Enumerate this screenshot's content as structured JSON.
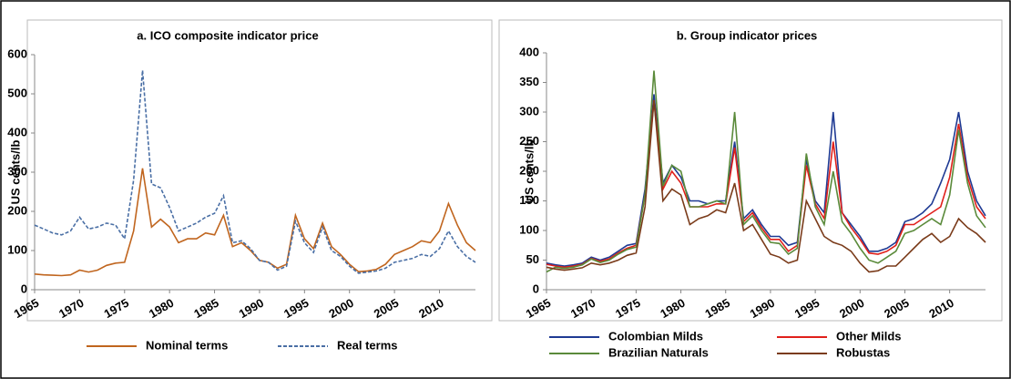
{
  "chart_data": [
    {
      "type": "line",
      "title": "a. ICO composite indicator price",
      "y_label": "US cents/lb",
      "x": [
        1965,
        1966,
        1967,
        1968,
        1969,
        1970,
        1971,
        1972,
        1973,
        1974,
        1975,
        1976,
        1977,
        1978,
        1979,
        1980,
        1981,
        1982,
        1983,
        1984,
        1985,
        1986,
        1987,
        1988,
        1989,
        1990,
        1991,
        1992,
        1993,
        1994,
        1995,
        1996,
        1997,
        1998,
        1999,
        2000,
        2001,
        2002,
        2003,
        2004,
        2005,
        2006,
        2007,
        2008,
        2009,
        2010,
        2011,
        2012,
        2013,
        2014
      ],
      "xlim": [
        1965,
        2014
      ],
      "xticks": [
        1965,
        1970,
        1975,
        1980,
        1985,
        1990,
        1995,
        2000,
        2005,
        2010
      ],
      "ylim": [
        0,
        600
      ],
      "yticks": [
        0,
        100,
        200,
        300,
        400,
        500,
        600
      ],
      "grid": false,
      "legend": "bottom",
      "series": [
        {
          "name": "Nominal terms",
          "color": "#c0651e",
          "line_style": "solid",
          "values": [
            40,
            38,
            37,
            36,
            38,
            50,
            45,
            50,
            62,
            68,
            70,
            150,
            310,
            160,
            180,
            160,
            120,
            130,
            130,
            145,
            140,
            190,
            110,
            120,
            100,
            75,
            70,
            55,
            65,
            190,
            130,
            105,
            170,
            110,
            90,
            65,
            46,
            48,
            52,
            65,
            90,
            100,
            110,
            125,
            120,
            150,
            220,
            165,
            120,
            100
          ]
        },
        {
          "name": "Real terms",
          "color": "#4a6fa5",
          "line_style": "dashed",
          "values": [
            165,
            155,
            145,
            140,
            150,
            185,
            155,
            160,
            170,
            165,
            130,
            280,
            560,
            270,
            260,
            210,
            150,
            160,
            170,
            185,
            195,
            240,
            120,
            125,
            105,
            75,
            70,
            50,
            60,
            175,
            120,
            95,
            160,
            100,
            85,
            60,
            42,
            45,
            48,
            55,
            70,
            75,
            80,
            90,
            85,
            105,
            150,
            110,
            85,
            70
          ]
        }
      ]
    },
    {
      "type": "line",
      "title": "b. Group indicator prices",
      "y_label": "US cents/lb",
      "x": [
        1965,
        1966,
        1967,
        1968,
        1969,
        1970,
        1971,
        1972,
        1973,
        1974,
        1975,
        1976,
        1977,
        1978,
        1979,
        1980,
        1981,
        1982,
        1983,
        1984,
        1985,
        1986,
        1987,
        1988,
        1989,
        1990,
        1991,
        1992,
        1993,
        1994,
        1995,
        1996,
        1997,
        1998,
        1999,
        2000,
        2001,
        2002,
        2003,
        2004,
        2005,
        2006,
        2007,
        2008,
        2009,
        2010,
        2011,
        2012,
        2013,
        2014
      ],
      "xlim": [
        1965,
        2014
      ],
      "xticks": [
        1965,
        1970,
        1975,
        1980,
        1985,
        1990,
        1995,
        2000,
        2005,
        2010
      ],
      "ylim": [
        0,
        400
      ],
      "yticks": [
        0,
        50,
        100,
        150,
        200,
        250,
        300,
        350,
        400
      ],
      "grid": false,
      "legend": "bottom",
      "series": [
        {
          "name": "Colombian Milds",
          "color": "#1f3a93",
          "line_style": "solid",
          "values": [
            45,
            42,
            40,
            42,
            45,
            55,
            50,
            55,
            65,
            75,
            78,
            170,
            330,
            180,
            210,
            190,
            150,
            150,
            145,
            150,
            150,
            250,
            120,
            135,
            110,
            90,
            90,
            75,
            80,
            220,
            150,
            130,
            300,
            130,
            110,
            90,
            65,
            65,
            70,
            80,
            115,
            120,
            130,
            145,
            180,
            220,
            300,
            200,
            150,
            125
          ]
        },
        {
          "name": "Other Milds",
          "color": "#e0201b",
          "line_style": "solid",
          "values": [
            43,
            40,
            38,
            40,
            43,
            53,
            48,
            52,
            62,
            70,
            75,
            160,
            320,
            170,
            200,
            180,
            140,
            140,
            140,
            145,
            145,
            240,
            115,
            130,
            105,
            85,
            85,
            65,
            75,
            210,
            145,
            120,
            250,
            130,
            105,
            85,
            62,
            60,
            65,
            75,
            110,
            110,
            120,
            130,
            140,
            190,
            280,
            190,
            140,
            120
          ]
        },
        {
          "name": "Brazilian Naturals",
          "color": "#5a8a3a",
          "line_style": "solid",
          "values": [
            30,
            38,
            36,
            38,
            42,
            52,
            46,
            50,
            60,
            68,
            72,
            160,
            370,
            175,
            210,
            200,
            140,
            140,
            145,
            150,
            145,
            300,
            110,
            125,
            100,
            80,
            78,
            60,
            70,
            230,
            140,
            110,
            200,
            115,
            95,
            70,
            50,
            45,
            55,
            65,
            95,
            100,
            110,
            120,
            110,
            160,
            270,
            180,
            125,
            105
          ]
        },
        {
          "name": "Robustas",
          "color": "#7a3b1a",
          "line_style": "solid",
          "values": [
            38,
            35,
            33,
            35,
            37,
            45,
            42,
            45,
            50,
            58,
            62,
            140,
            320,
            150,
            170,
            160,
            110,
            120,
            125,
            135,
            130,
            180,
            100,
            110,
            85,
            60,
            55,
            45,
            50,
            150,
            120,
            90,
            80,
            75,
            65,
            45,
            30,
            32,
            40,
            40,
            55,
            70,
            85,
            95,
            80,
            90,
            120,
            105,
            95,
            80
          ]
        }
      ]
    }
  ]
}
